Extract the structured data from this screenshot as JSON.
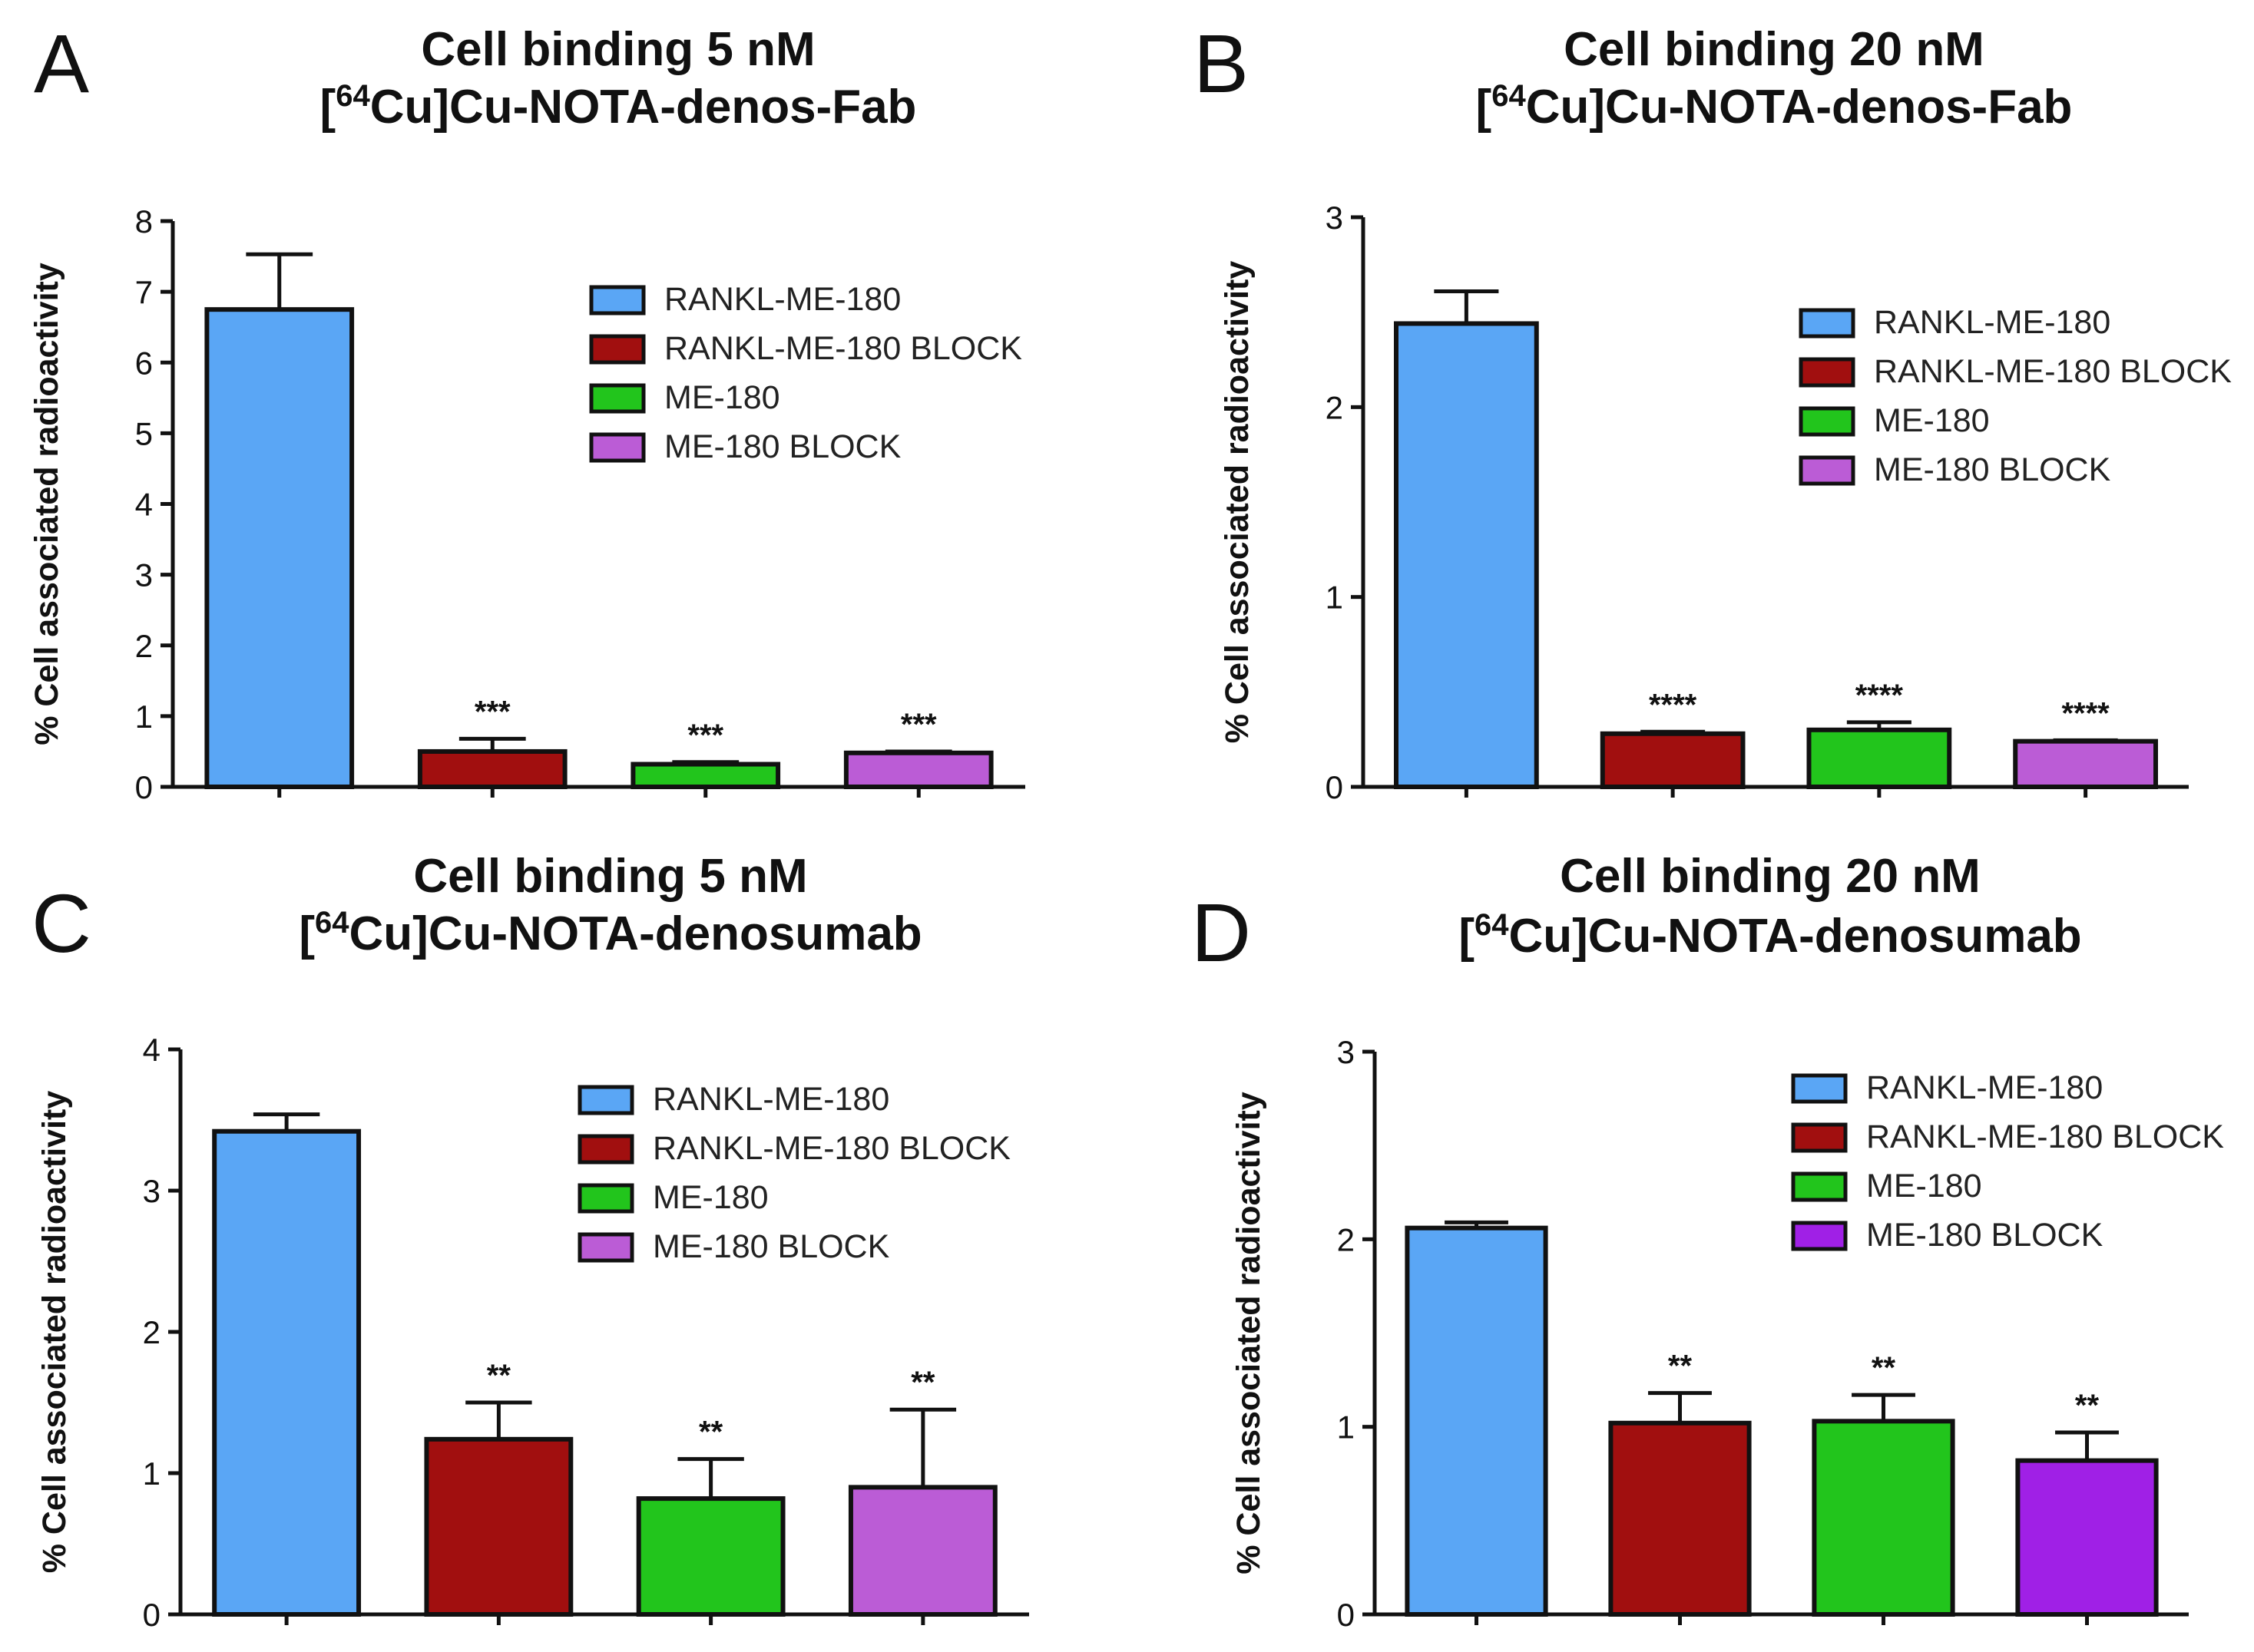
{
  "colors": {
    "rankl": "#5aa6f5",
    "rankl_block": "#a10f0f",
    "me180": "#22c51c",
    "me180_block": "#bb5cd6",
    "me180_block_d": "#a020e6",
    "outline": "#111111"
  },
  "chart_data": [
    {
      "type": "bar",
      "panel_label": "A",
      "title_line1": "Cell binding 5 nM",
      "title_line2_pre": "[",
      "title_line2_sup": "64",
      "title_line2_post": "Cu]Cu-NOTA-denos-Fab",
      "ylabel": "% Cell associated radioactivity",
      "ylim": [
        0,
        8
      ],
      "yticks": [
        0,
        1,
        2,
        3,
        4,
        5,
        6,
        7,
        8
      ],
      "categories": [
        "RANKL-ME-180",
        "RANKL-ME-180 BLOCK",
        "ME-180",
        "ME-180 BLOCK"
      ],
      "values": [
        6.75,
        0.5,
        0.32,
        0.48
      ],
      "errors": [
        0.78,
        0.18,
        0.03,
        0.02
      ],
      "significance": [
        "",
        "***",
        "***",
        "***"
      ],
      "legend": [
        "RANKL-ME-180",
        "RANKL-ME-180 BLOCK",
        "ME-180",
        "ME-180 BLOCK"
      ],
      "colors": [
        "#5aa6f5",
        "#a10f0f",
        "#22c51c",
        "#bb5cd6"
      ]
    },
    {
      "type": "bar",
      "panel_label": "B",
      "title_line1": "Cell binding 20 nM",
      "title_line2_pre": "[",
      "title_line2_sup": "64",
      "title_line2_post": "Cu]Cu-NOTA-denos-Fab",
      "ylabel": "% Cell associated radioactivity",
      "ylim": [
        0,
        3
      ],
      "yticks": [
        0,
        1,
        2,
        3
      ],
      "categories": [
        "RANKL-ME-180",
        "RANKL-ME-180 BLOCK",
        "ME-180",
        "ME-180 BLOCK"
      ],
      "values": [
        2.44,
        0.28,
        0.3,
        0.24
      ],
      "errors": [
        0.17,
        0.01,
        0.04,
        0.005
      ],
      "significance": [
        "",
        "****",
        "****",
        "****"
      ],
      "legend": [
        "RANKL-ME-180",
        "RANKL-ME-180 BLOCK",
        "ME-180",
        "ME-180 BLOCK"
      ],
      "colors": [
        "#5aa6f5",
        "#a10f0f",
        "#22c51c",
        "#bb5cd6"
      ]
    },
    {
      "type": "bar",
      "panel_label": "C",
      "title_line1": "Cell binding 5 nM",
      "title_line2_pre": "[",
      "title_line2_sup": "64",
      "title_line2_post": "Cu]Cu-NOTA-denosumab",
      "ylabel": "% Cell associated radioactivity",
      "ylim": [
        0,
        4
      ],
      "yticks": [
        0,
        1,
        2,
        3,
        4
      ],
      "categories": [
        "RANKL-ME-180",
        "RANKL-ME-180 BLOCK",
        "ME-180",
        "ME-180 BLOCK"
      ],
      "values": [
        3.42,
        1.24,
        0.82,
        0.9
      ],
      "errors": [
        0.12,
        0.26,
        0.28,
        0.55
      ],
      "significance": [
        "",
        "**",
        "**",
        "**"
      ],
      "legend": [
        "RANKL-ME-180",
        "RANKL-ME-180 BLOCK",
        "ME-180",
        "ME-180 BLOCK"
      ],
      "colors": [
        "#5aa6f5",
        "#a10f0f",
        "#22c51c",
        "#bb5cd6"
      ]
    },
    {
      "type": "bar",
      "panel_label": "D",
      "title_line1": "Cell binding 20 nM",
      "title_line2_pre": "[",
      "title_line2_sup": "64",
      "title_line2_post": "Cu]Cu-NOTA-denosumab",
      "ylabel": "% Cell associated radioactivity",
      "ylim": [
        0,
        3
      ],
      "yticks": [
        0,
        1,
        2,
        3
      ],
      "categories": [
        "RANKL-ME-180",
        "RANKL-ME-180 BLOCK",
        "ME-180",
        "ME-180 BLOCK"
      ],
      "values": [
        2.06,
        1.02,
        1.03,
        0.82
      ],
      "errors": [
        0.03,
        0.16,
        0.14,
        0.15
      ],
      "significance": [
        "",
        "**",
        "**",
        "**"
      ],
      "legend": [
        "RANKL-ME-180",
        "RANKL-ME-180 BLOCK",
        "ME-180",
        "ME-180 BLOCK"
      ],
      "colors": [
        "#5aa6f5",
        "#a10f0f",
        "#22c51c",
        "#a020e6"
      ]
    }
  ]
}
